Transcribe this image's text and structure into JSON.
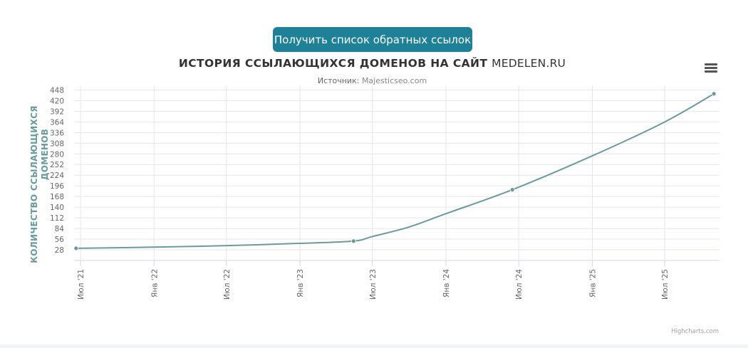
{
  "button": {
    "label": "Получить список обратных ссылок"
  },
  "menu": {
    "icon": "hamburger-menu-icon"
  },
  "credits": "Highcharts.com",
  "colors": {
    "button": "#1f8197",
    "series": "#6a9a9c",
    "grid": "#e6e6e6"
  },
  "chart_data": {
    "type": "line",
    "title_main": "ИСТОРИЯ ССЫЛАЮЩИХСЯ ДОМЕНОВ НА САЙТ",
    "title_site": "MEDELEN.RU",
    "subtitle_label": "Источник:",
    "subtitle_source": "Majesticseo.com",
    "ylabel": "КОЛИЧЕСТВО ССЫЛАЮЩИХСЯ ДОМЕНОВ",
    "ylabel_lines": [
      "КОЛИЧЕСТВО ССЫЛАЮЩИХСЯ",
      "ДОМЕНОВ"
    ],
    "ylim": [
      0,
      460
    ],
    "yticks": [
      28,
      56,
      84,
      112,
      140,
      168,
      196,
      224,
      252,
      280,
      308,
      336,
      364,
      392,
      420,
      448
    ],
    "xlim": [
      "2021-06-15",
      "2025-11-15"
    ],
    "xticks": [
      {
        "date": "2021-07-01",
        "label": "Июл '21"
      },
      {
        "date": "2022-01-01",
        "label": "Янв '22"
      },
      {
        "date": "2022-07-01",
        "label": "Июл '22"
      },
      {
        "date": "2023-01-01",
        "label": "Янв '23"
      },
      {
        "date": "2023-07-01",
        "label": "Июл '23"
      },
      {
        "date": "2024-01-01",
        "label": "Янв '24"
      },
      {
        "date": "2024-07-01",
        "label": "Июл '24"
      },
      {
        "date": "2025-01-01",
        "label": "Янв '25"
      },
      {
        "date": "2025-07-01",
        "label": "Июл '25"
      }
    ],
    "grid": true,
    "series": [
      {
        "values": [
          {
            "x": "2021-06-20",
            "y": 32
          },
          {
            "x": "2022-01-01",
            "y": 35
          },
          {
            "x": "2022-07-01",
            "y": 39
          },
          {
            "x": "2023-01-01",
            "y": 45
          },
          {
            "x": "2023-05-15",
            "y": 51
          },
          {
            "x": "2023-07-01",
            "y": 63
          },
          {
            "x": "2023-10-01",
            "y": 88
          },
          {
            "x": "2024-01-01",
            "y": 123
          },
          {
            "x": "2024-06-15",
            "y": 186
          },
          {
            "x": "2025-01-01",
            "y": 275
          },
          {
            "x": "2025-07-01",
            "y": 364
          },
          {
            "x": "2025-11-01",
            "y": 438
          }
        ],
        "markers": [
          "2021-06-20",
          "2023-05-15",
          "2024-06-15",
          "2025-11-01"
        ]
      }
    ]
  }
}
